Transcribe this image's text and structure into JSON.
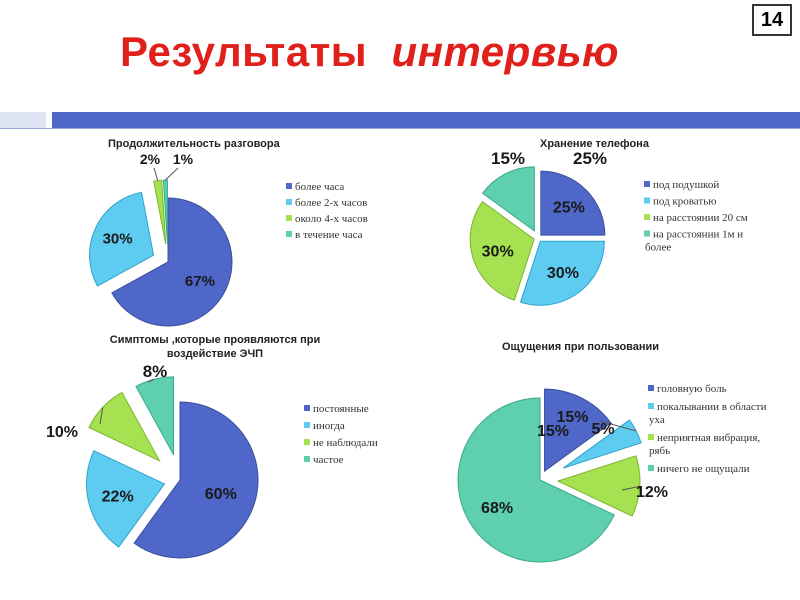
{
  "slide": {
    "title_part1": "Результаты",
    "title_part2": "интервью",
    "page_number": "14"
  },
  "colors": {
    "title": "#e0201b",
    "band": "#4e67c8",
    "band_light": "#dfe4f2",
    "blue": "#4e67c8",
    "light_blue": "#5ecbf1",
    "green": "#a6e151",
    "teal": "#5ed0b0"
  },
  "chart_data": [
    {
      "type": "pie",
      "title": "Продолжительность разговора",
      "categories": [
        "более часа",
        "более 2-х часов",
        "около 4-х часов",
        "в течение часа"
      ],
      "values": [
        67,
        30,
        2,
        1
      ],
      "labels": [
        "67%",
        "30%",
        "2%",
        "1%"
      ],
      "legend": "right"
    },
    {
      "type": "pie",
      "title": "Хранение телефона",
      "categories": [
        "под подушкой",
        "под кроватью",
        "на расстоянии 20 см",
        "на расстоянии 1м и более"
      ],
      "values": [
        25,
        30,
        30,
        15
      ],
      "labels": [
        "25%",
        "30%",
        "30%",
        "15%"
      ],
      "legend": "right"
    },
    {
      "type": "pie",
      "title_lines": [
        "Симптомы ,которые проявляются при",
        "воздействие ЭЧП"
      ],
      "categories": [
        "постоянные",
        "иногда",
        "не наблюдали",
        "частое"
      ],
      "values": [
        60,
        22,
        10,
        8
      ],
      "labels": [
        "60%",
        "22%",
        "10%",
        "8%"
      ],
      "legend": "right"
    },
    {
      "type": "pie",
      "title": "Ощущения при пользовании",
      "categories": [
        "головную боль",
        "покалывания в области уха",
        "неприятная вибрация, рябь",
        "ничего не ощущали"
      ],
      "values": [
        15,
        5,
        12,
        68
      ],
      "labels": [
        "15%",
        "5%",
        "12%",
        "68%"
      ],
      "legend": "right"
    }
  ]
}
